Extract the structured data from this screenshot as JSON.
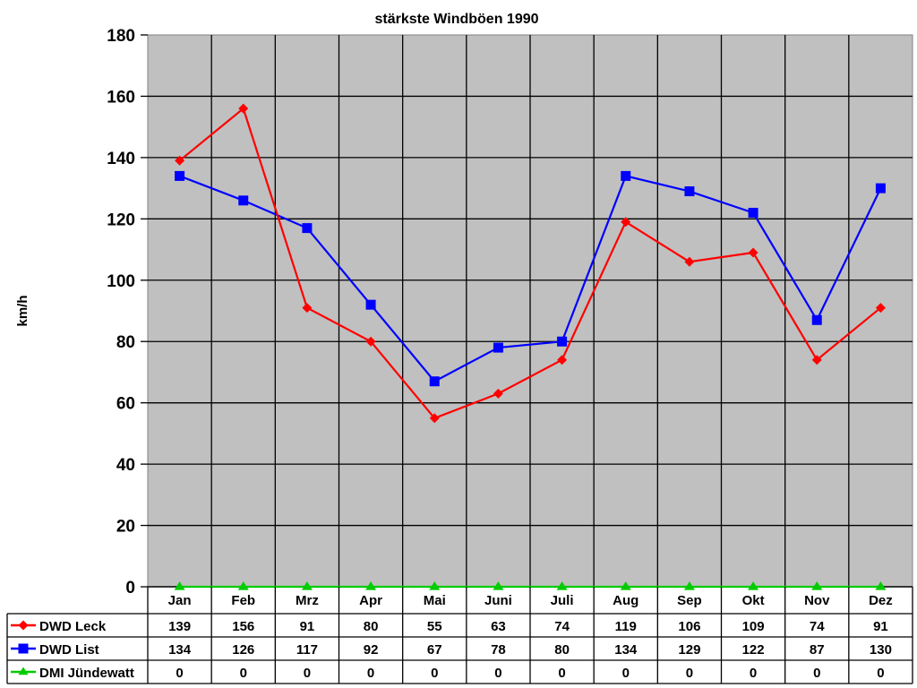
{
  "chart_data": {
    "type": "line",
    "title": "stärkste Windböen 1990",
    "xlabel": "",
    "ylabel": "km/h",
    "ylim": [
      0,
      180
    ],
    "yticks": [
      0,
      20,
      40,
      60,
      80,
      100,
      120,
      140,
      160,
      180
    ],
    "grid": true,
    "legend_position": "data-table",
    "categories": [
      "Jan",
      "Feb",
      "Mrz",
      "Apr",
      "Mai",
      "Juni",
      "Juli",
      "Aug",
      "Sep",
      "Okt",
      "Nov",
      "Dez"
    ],
    "series": [
      {
        "name": "DWD Leck",
        "color": "#ff0000",
        "marker": "diamond",
        "values": [
          139,
          156,
          91,
          80,
          55,
          63,
          74,
          119,
          106,
          109,
          74,
          91
        ]
      },
      {
        "name": "DWD List",
        "color": "#0000ff",
        "marker": "square",
        "values": [
          134,
          126,
          117,
          92,
          67,
          78,
          80,
          134,
          129,
          122,
          87,
          130
        ]
      },
      {
        "name": "DMI Jündewatt",
        "color": "#00cc00",
        "marker": "triangle",
        "values": [
          0,
          0,
          0,
          0,
          0,
          0,
          0,
          0,
          0,
          0,
          0,
          0
        ]
      }
    ]
  },
  "colors": {
    "plot_background": "#c0c0c0",
    "gridline": "#000000",
    "plot_border": "#808080"
  }
}
